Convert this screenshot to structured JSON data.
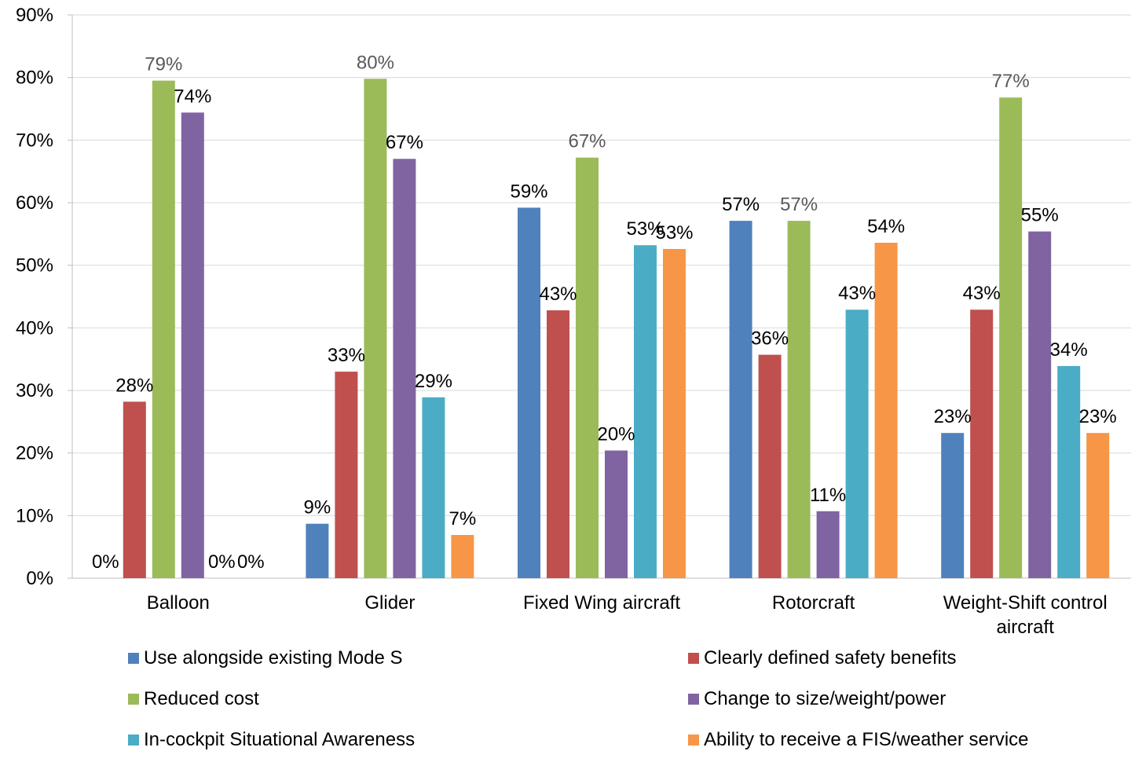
{
  "chart_data": {
    "type": "bar",
    "title": "",
    "xlabel": "",
    "ylabel": "",
    "ylim": [
      0,
      90
    ],
    "y_ticks": [
      "0%",
      "10%",
      "20%",
      "30%",
      "40%",
      "50%",
      "60%",
      "70%",
      "80%",
      "90%"
    ],
    "y_tick_values": [
      0,
      10,
      20,
      30,
      40,
      50,
      60,
      70,
      80,
      90
    ],
    "grid": true,
    "legend_position": "bottom",
    "categories": [
      [
        "Balloon"
      ],
      [
        "Glider"
      ],
      [
        "Fixed Wing aircraft"
      ],
      [
        "Rotorcraft"
      ],
      [
        "Weight-Shift control",
        "aircraft"
      ]
    ],
    "series": [
      {
        "name": "Use alongside existing Mode S",
        "color": "#4F81BD",
        "values": [
          0,
          8.7,
          59.2,
          57.1,
          23.2
        ],
        "labels": [
          "0%",
          "9%",
          "59%",
          "57%",
          "23%"
        ]
      },
      {
        "name": "Clearly defined safety benefits",
        "color": "#C0504D",
        "values": [
          28.2,
          33.0,
          42.8,
          35.7,
          42.9
        ],
        "labels": [
          "28%",
          "33%",
          "43%",
          "36%",
          "43%"
        ]
      },
      {
        "name": "Reduced cost",
        "color": "#9BBB59",
        "values": [
          79.5,
          79.8,
          67.2,
          57.1,
          76.8
        ],
        "labels": [
          "79%",
          "80%",
          "67%",
          "57%",
          "77%"
        ]
      },
      {
        "name": "Change to size/weight/power",
        "color": "#8064A2",
        "values": [
          74.4,
          67.0,
          20.4,
          10.7,
          55.4
        ],
        "labels": [
          "74%",
          "67%",
          "20%",
          "11%",
          "55%"
        ]
      },
      {
        "name": "In-cockpit Situational Awareness",
        "color": "#4BACC6",
        "values": [
          0,
          28.9,
          53.2,
          42.9,
          33.9
        ],
        "labels": [
          "0%",
          "29%",
          "53%",
          "43%",
          "34%"
        ]
      },
      {
        "name": "Ability to receive a FIS/weather service",
        "color": "#F79646",
        "values": [
          0,
          6.9,
          52.6,
          53.6,
          23.2
        ],
        "labels": [
          "0%",
          "7%",
          "53%",
          "54%",
          "23%"
        ]
      }
    ],
    "label_colors": {
      "default": "#000000",
      "Reduced cost": "#595959"
    }
  }
}
